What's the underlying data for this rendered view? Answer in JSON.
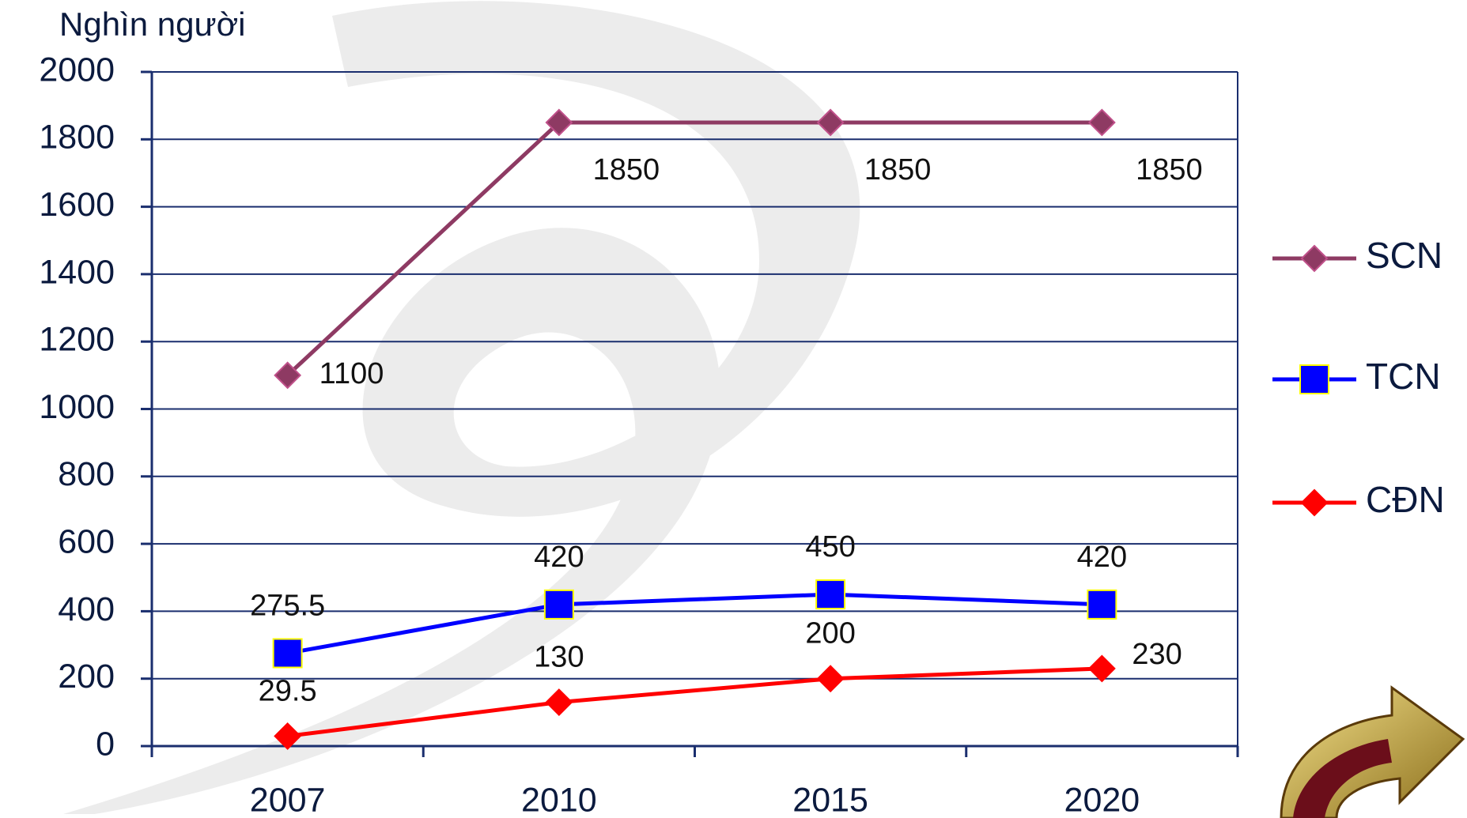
{
  "chart_data": {
    "type": "line",
    "y_label": "Nghìn người",
    "categories": [
      "2007",
      "2010",
      "2015",
      "2020"
    ],
    "series": [
      {
        "name": "SCN",
        "color": "#8e3a63",
        "marker": "diamond",
        "values": [
          1100,
          1850,
          1850,
          1850
        ]
      },
      {
        "name": "TCN",
        "color": "#0000ff",
        "marker": "square",
        "values": [
          275.5,
          420,
          450,
          420
        ]
      },
      {
        "name": "CĐN",
        "color": "#ff0000",
        "marker": "diamond",
        "values": [
          29.5,
          130,
          200,
          230
        ]
      }
    ],
    "ylim": [
      0,
      2000
    ],
    "yticks": [
      0,
      200,
      400,
      600,
      800,
      1000,
      1200,
      1400,
      1600,
      1800,
      2000
    ],
    "grid": true,
    "legend": "right"
  }
}
